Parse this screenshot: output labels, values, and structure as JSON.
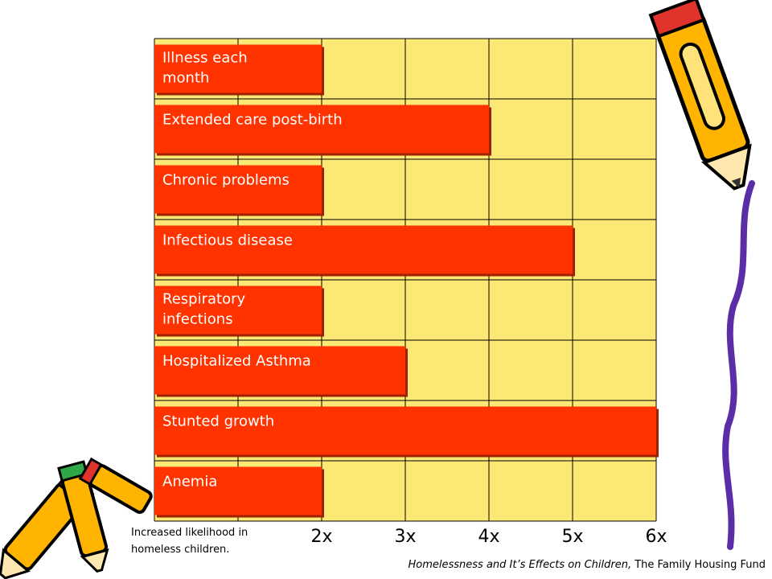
{
  "chart_data": {
    "type": "bar",
    "orientation": "horizontal",
    "categories": [
      "Illness each month",
      "Extended care post-birth",
      "Chronic problems",
      "Infectious disease",
      "Respiratory infections",
      "Hospitalized Asthma",
      "Stunted growth",
      "Anemia"
    ],
    "values": [
      2,
      4,
      2,
      5,
      2,
      3,
      6,
      2
    ],
    "xlim": [
      0,
      6
    ],
    "x_ticks": [
      "2x",
      "3x",
      "4x",
      "5x",
      "6x"
    ],
    "xlabel": "Increased likelihood in homeless children.",
    "grid": true,
    "bar_color": "#FF3300",
    "plot_background": "#FCE975"
  },
  "source": {
    "title": "Homelessness and It’s Effects on Children,",
    "publisher": " The Family Housing Fund"
  },
  "decorations": [
    "pencil-icon",
    "crayon-bundle-icon"
  ]
}
